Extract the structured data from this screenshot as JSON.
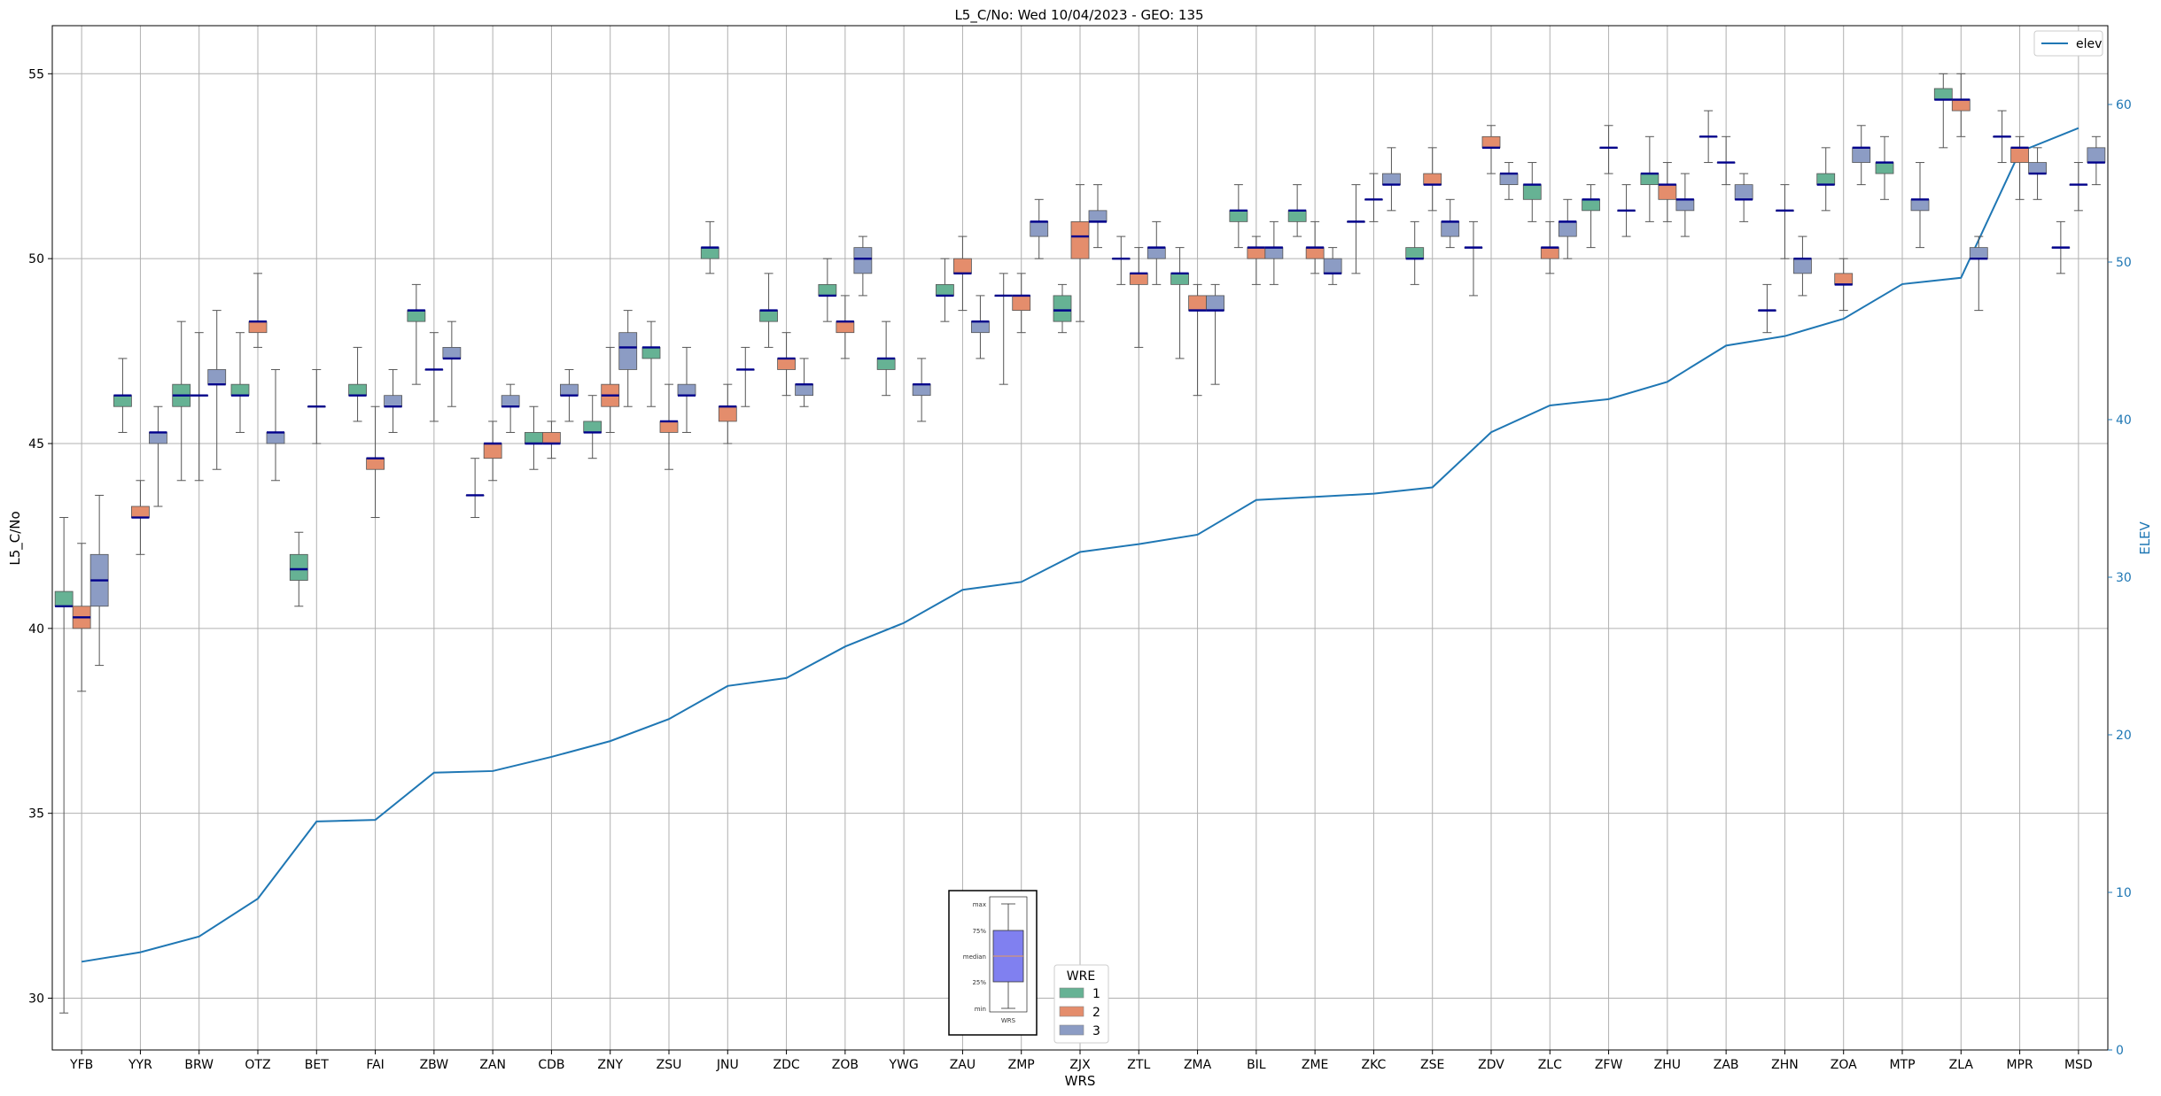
{
  "chart_data": {
    "type": "box",
    "title": "L5_C/No: Wed 10/04/2023 - GEO: 135",
    "xlabel": "WRS",
    "ylabel": "L5_C/No",
    "y2label": "ELEV",
    "ylim": [
      28.6,
      56.3
    ],
    "y2lim": [
      0,
      65
    ],
    "yticks": [
      30,
      35,
      40,
      45,
      50,
      55
    ],
    "y2ticks": [
      0,
      10,
      20,
      30,
      40,
      50,
      60
    ],
    "grid": true,
    "categories": [
      "YFB",
      "YYR",
      "BRW",
      "OTZ",
      "BET",
      "FAI",
      "ZBW",
      "ZAN",
      "CDB",
      "ZNY",
      "ZSU",
      "JNU",
      "ZDC",
      "ZOB",
      "YWG",
      "ZAU",
      "ZMP",
      "ZJX",
      "ZTL",
      "ZMA",
      "BIL",
      "ZME",
      "ZKC",
      "ZSE",
      "ZDV",
      "ZLC",
      "ZFW",
      "ZHU",
      "ZAB",
      "ZHN",
      "ZOA",
      "MTP",
      "ZLA",
      "MPR",
      "MSD"
    ],
    "wre_legend": {
      "title": "WRE",
      "entries": [
        "1",
        "2",
        "3"
      ],
      "colors": [
        "#66b294",
        "#e48d6c",
        "#8c9cc4"
      ]
    },
    "line_legend": "elev",
    "line_color": "#1f77b4",
    "elev": [
      5.6,
      6.2,
      7.2,
      9.6,
      14.5,
      14.6,
      17.6,
      17.7,
      18.6,
      19.6,
      21.0,
      23.1,
      23.6,
      25.6,
      27.1,
      29.2,
      29.7,
      31.6,
      32.1,
      32.7,
      34.9,
      35.1,
      35.3,
      35.7,
      39.2,
      40.9,
      41.3,
      42.4,
      44.7,
      45.3,
      46.4,
      48.6,
      49.0,
      57.0,
      58.5
    ],
    "boxes": [
      {
        "wrs": "YFB",
        "wre": 1,
        "min": 29.6,
        "q1": 40.6,
        "median": 40.6,
        "q3": 41.0,
        "max": 43.0
      },
      {
        "wrs": "YFB",
        "wre": 2,
        "min": 38.3,
        "q1": 40.0,
        "median": 40.3,
        "q3": 40.6,
        "max": 42.3
      },
      {
        "wrs": "YFB",
        "wre": 3,
        "min": 39.0,
        "q1": 40.6,
        "median": 41.3,
        "q3": 42.0,
        "max": 43.6
      },
      {
        "wrs": "YYR",
        "wre": 1,
        "min": 45.3,
        "q1": 46.0,
        "median": 46.3,
        "q3": 46.3,
        "max": 47.3
      },
      {
        "wrs": "YYR",
        "wre": 2,
        "min": 42.0,
        "q1": 43.0,
        "median": 43.0,
        "q3": 43.3,
        "max": 44.0
      },
      {
        "wrs": "YYR",
        "wre": 3,
        "min": 43.3,
        "q1": 45.0,
        "median": 45.3,
        "q3": 45.3,
        "max": 46.0
      },
      {
        "wrs": "BRW",
        "wre": 1,
        "min": 44.0,
        "q1": 46.0,
        "median": 46.3,
        "q3": 46.6,
        "max": 48.3
      },
      {
        "wrs": "BRW",
        "wre": 2,
        "min": 44.0,
        "q1": 46.3,
        "median": 46.3,
        "q3": 46.3,
        "max": 48.0
      },
      {
        "wrs": "BRW",
        "wre": 3,
        "min": 44.3,
        "q1": 46.6,
        "median": 46.6,
        "q3": 47.0,
        "max": 48.6
      },
      {
        "wrs": "OTZ",
        "wre": 1,
        "min": 45.3,
        "q1": 46.3,
        "median": 46.3,
        "q3": 46.6,
        "max": 48.0
      },
      {
        "wrs": "OTZ",
        "wre": 2,
        "min": 47.6,
        "q1": 48.0,
        "median": 48.3,
        "q3": 48.3,
        "max": 49.6
      },
      {
        "wrs": "OTZ",
        "wre": 3,
        "min": 44.0,
        "q1": 45.0,
        "median": 45.3,
        "q3": 45.3,
        "max": 47.0
      },
      {
        "wrs": "BET",
        "wre": 1,
        "min": 40.6,
        "q1": 41.3,
        "median": 41.6,
        "q3": 42.0,
        "max": 42.6
      },
      {
        "wrs": "BET",
        "wre": 2,
        "min": 45.0,
        "q1": 46.0,
        "median": 46.0,
        "q3": 46.0,
        "max": 47.0
      },
      {
        "wrs": "FAI",
        "wre": 1,
        "min": 45.6,
        "q1": 46.3,
        "median": 46.3,
        "q3": 46.6,
        "max": 47.6
      },
      {
        "wrs": "FAI",
        "wre": 2,
        "min": 43.0,
        "q1": 44.3,
        "median": 44.6,
        "q3": 44.6,
        "max": 46.0
      },
      {
        "wrs": "FAI",
        "wre": 3,
        "min": 45.3,
        "q1": 46.0,
        "median": 46.0,
        "q3": 46.3,
        "max": 47.0
      },
      {
        "wrs": "ZBW",
        "wre": 1,
        "min": 46.6,
        "q1": 48.3,
        "median": 48.6,
        "q3": 48.6,
        "max": 49.3
      },
      {
        "wrs": "ZBW",
        "wre": 2,
        "min": 45.6,
        "q1": 47.0,
        "median": 47.0,
        "q3": 47.0,
        "max": 48.0
      },
      {
        "wrs": "ZBW",
        "wre": 3,
        "min": 46.0,
        "q1": 47.3,
        "median": 47.3,
        "q3": 47.6,
        "max": 48.3
      },
      {
        "wrs": "ZAN",
        "wre": 1,
        "min": 43.0,
        "q1": 43.6,
        "median": 43.6,
        "q3": 43.6,
        "max": 44.6
      },
      {
        "wrs": "ZAN",
        "wre": 2,
        "min": 44.0,
        "q1": 44.6,
        "median": 45.0,
        "q3": 45.0,
        "max": 45.6
      },
      {
        "wrs": "ZAN",
        "wre": 3,
        "min": 45.3,
        "q1": 46.0,
        "median": 46.0,
        "q3": 46.3,
        "max": 46.6
      },
      {
        "wrs": "CDB",
        "wre": 1,
        "min": 44.3,
        "q1": 45.0,
        "median": 45.0,
        "q3": 45.3,
        "max": 46.0
      },
      {
        "wrs": "CDB",
        "wre": 2,
        "min": 44.6,
        "q1": 45.0,
        "median": 45.0,
        "q3": 45.3,
        "max": 45.6
      },
      {
        "wrs": "CDB",
        "wre": 3,
        "min": 45.6,
        "q1": 46.3,
        "median": 46.3,
        "q3": 46.6,
        "max": 47.0
      },
      {
        "wrs": "ZNY",
        "wre": 1,
        "min": 44.6,
        "q1": 45.3,
        "median": 45.3,
        "q3": 45.6,
        "max": 46.3
      },
      {
        "wrs": "ZNY",
        "wre": 2,
        "min": 45.3,
        "q1": 46.0,
        "median": 46.3,
        "q3": 46.6,
        "max": 47.6
      },
      {
        "wrs": "ZNY",
        "wre": 3,
        "min": 46.0,
        "q1": 47.0,
        "median": 47.6,
        "q3": 48.0,
        "max": 48.6
      },
      {
        "wrs": "ZSU",
        "wre": 1,
        "min": 46.0,
        "q1": 47.3,
        "median": 47.6,
        "q3": 47.6,
        "max": 48.3
      },
      {
        "wrs": "ZSU",
        "wre": 2,
        "min": 44.3,
        "q1": 45.3,
        "median": 45.6,
        "q3": 45.6,
        "max": 46.6
      },
      {
        "wrs": "ZSU",
        "wre": 3,
        "min": 45.3,
        "q1": 46.3,
        "median": 46.3,
        "q3": 46.6,
        "max": 47.6
      },
      {
        "wrs": "JNU",
        "wre": 1,
        "min": 49.6,
        "q1": 50.0,
        "median": 50.3,
        "q3": 50.3,
        "max": 51.0
      },
      {
        "wrs": "JNU",
        "wre": 2,
        "min": 45.0,
        "q1": 45.6,
        "median": 46.0,
        "q3": 46.0,
        "max": 46.6
      },
      {
        "wrs": "JNU",
        "wre": 3,
        "min": 46.0,
        "q1": 47.0,
        "median": 47.0,
        "q3": 47.0,
        "max": 47.6
      },
      {
        "wrs": "ZDC",
        "wre": 1,
        "min": 47.6,
        "q1": 48.3,
        "median": 48.6,
        "q3": 48.6,
        "max": 49.6
      },
      {
        "wrs": "ZDC",
        "wre": 2,
        "min": 46.3,
        "q1": 47.0,
        "median": 47.3,
        "q3": 47.3,
        "max": 48.0
      },
      {
        "wrs": "ZDC",
        "wre": 3,
        "min": 46.0,
        "q1": 46.3,
        "median": 46.6,
        "q3": 46.6,
        "max": 47.3
      },
      {
        "wrs": "ZOB",
        "wre": 1,
        "min": 48.3,
        "q1": 49.0,
        "median": 49.0,
        "q3": 49.3,
        "max": 50.0
      },
      {
        "wrs": "ZOB",
        "wre": 2,
        "min": 47.3,
        "q1": 48.0,
        "median": 48.3,
        "q3": 48.3,
        "max": 49.0
      },
      {
        "wrs": "ZOB",
        "wre": 3,
        "min": 49.0,
        "q1": 49.6,
        "median": 50.0,
        "q3": 50.3,
        "max": 50.6
      },
      {
        "wrs": "YWG",
        "wre": 1,
        "min": 46.3,
        "q1": 47.0,
        "median": 47.3,
        "q3": 47.3,
        "max": 48.3
      },
      {
        "wrs": "YWG",
        "wre": 3,
        "min": 45.6,
        "q1": 46.3,
        "median": 46.6,
        "q3": 46.6,
        "max": 47.3
      },
      {
        "wrs": "ZAU",
        "wre": 1,
        "min": 48.3,
        "q1": 49.0,
        "median": 49.0,
        "q3": 49.3,
        "max": 50.0
      },
      {
        "wrs": "ZAU",
        "wre": 2,
        "min": 48.6,
        "q1": 49.6,
        "median": 49.6,
        "q3": 50.0,
        "max": 50.6
      },
      {
        "wrs": "ZAU",
        "wre": 3,
        "min": 47.3,
        "q1": 48.0,
        "median": 48.3,
        "q3": 48.3,
        "max": 49.0
      },
      {
        "wrs": "ZMP",
        "wre": 1,
        "min": 46.6,
        "q1": 49.0,
        "median": 49.0,
        "q3": 49.0,
        "max": 49.6
      },
      {
        "wrs": "ZMP",
        "wre": 2,
        "min": 48.0,
        "q1": 48.6,
        "median": 49.0,
        "q3": 49.0,
        "max": 49.6
      },
      {
        "wrs": "ZMP",
        "wre": 3,
        "min": 50.0,
        "q1": 50.6,
        "median": 51.0,
        "q3": 51.0,
        "max": 51.6
      },
      {
        "wrs": "ZJX",
        "wre": 1,
        "min": 48.0,
        "q1": 48.3,
        "median": 48.6,
        "q3": 49.0,
        "max": 49.3
      },
      {
        "wrs": "ZJX",
        "wre": 2,
        "min": 48.3,
        "q1": 50.0,
        "median": 50.6,
        "q3": 51.0,
        "max": 52.0
      },
      {
        "wrs": "ZJX",
        "wre": 3,
        "min": 50.3,
        "q1": 51.0,
        "median": 51.0,
        "q3": 51.3,
        "max": 52.0
      },
      {
        "wrs": "ZTL",
        "wre": 1,
        "min": 49.3,
        "q1": 50.0,
        "median": 50.0,
        "q3": 50.0,
        "max": 50.6
      },
      {
        "wrs": "ZTL",
        "wre": 2,
        "min": 47.6,
        "q1": 49.3,
        "median": 49.6,
        "q3": 49.6,
        "max": 50.3
      },
      {
        "wrs": "ZTL",
        "wre": 3,
        "min": 49.3,
        "q1": 50.0,
        "median": 50.3,
        "q3": 50.3,
        "max": 51.0
      },
      {
        "wrs": "ZMA",
        "wre": 1,
        "min": 47.3,
        "q1": 49.3,
        "median": 49.6,
        "q3": 49.6,
        "max": 50.3
      },
      {
        "wrs": "ZMA",
        "wre": 2,
        "min": 46.3,
        "q1": 48.6,
        "median": 48.6,
        "q3": 49.0,
        "max": 49.3
      },
      {
        "wrs": "ZMA",
        "wre": 3,
        "min": 46.6,
        "q1": 48.6,
        "median": 48.6,
        "q3": 49.0,
        "max": 49.3
      },
      {
        "wrs": "BIL",
        "wre": 1,
        "min": 50.3,
        "q1": 51.0,
        "median": 51.3,
        "q3": 51.3,
        "max": 52.0
      },
      {
        "wrs": "BIL",
        "wre": 2,
        "min": 49.3,
        "q1": 50.0,
        "median": 50.3,
        "q3": 50.3,
        "max": 50.6
      },
      {
        "wrs": "BIL",
        "wre": 3,
        "min": 49.3,
        "q1": 50.0,
        "median": 50.3,
        "q3": 50.3,
        "max": 51.0
      },
      {
        "wrs": "ZME",
        "wre": 1,
        "min": 50.6,
        "q1": 51.0,
        "median": 51.3,
        "q3": 51.3,
        "max": 52.0
      },
      {
        "wrs": "ZME",
        "wre": 2,
        "min": 49.6,
        "q1": 50.0,
        "median": 50.3,
        "q3": 50.3,
        "max": 51.0
      },
      {
        "wrs": "ZME",
        "wre": 3,
        "min": 49.3,
        "q1": 49.6,
        "median": 49.6,
        "q3": 50.0,
        "max": 50.3
      },
      {
        "wrs": "ZKC",
        "wre": 1,
        "min": 49.6,
        "q1": 51.0,
        "median": 51.0,
        "q3": 51.0,
        "max": 52.0
      },
      {
        "wrs": "ZKC",
        "wre": 2,
        "min": 51.0,
        "q1": 51.6,
        "median": 51.6,
        "q3": 51.6,
        "max": 52.3
      },
      {
        "wrs": "ZKC",
        "wre": 3,
        "min": 51.3,
        "q1": 52.0,
        "median": 52.0,
        "q3": 52.3,
        "max": 53.0
      },
      {
        "wrs": "ZSE",
        "wre": 1,
        "min": 49.3,
        "q1": 50.0,
        "median": 50.0,
        "q3": 50.3,
        "max": 51.0
      },
      {
        "wrs": "ZSE",
        "wre": 2,
        "min": 51.3,
        "q1": 52.0,
        "median": 52.0,
        "q3": 52.3,
        "max": 53.0
      },
      {
        "wrs": "ZSE",
        "wre": 3,
        "min": 50.3,
        "q1": 50.6,
        "median": 51.0,
        "q3": 51.0,
        "max": 51.6
      },
      {
        "wrs": "ZDV",
        "wre": 1,
        "min": 49.0,
        "q1": 50.3,
        "median": 50.3,
        "q3": 50.3,
        "max": 51.0
      },
      {
        "wrs": "ZDV",
        "wre": 2,
        "min": 52.3,
        "q1": 53.0,
        "median": 53.0,
        "q3": 53.3,
        "max": 53.6
      },
      {
        "wrs": "ZDV",
        "wre": 3,
        "min": 51.6,
        "q1": 52.0,
        "median": 52.3,
        "q3": 52.3,
        "max": 52.6
      },
      {
        "wrs": "ZLC",
        "wre": 1,
        "min": 51.0,
        "q1": 51.6,
        "median": 52.0,
        "q3": 52.0,
        "max": 52.6
      },
      {
        "wrs": "ZLC",
        "wre": 2,
        "min": 49.6,
        "q1": 50.0,
        "median": 50.3,
        "q3": 50.3,
        "max": 51.0
      },
      {
        "wrs": "ZLC",
        "wre": 3,
        "min": 50.0,
        "q1": 50.6,
        "median": 51.0,
        "q3": 51.0,
        "max": 51.6
      },
      {
        "wrs": "ZFW",
        "wre": 1,
        "min": 50.3,
        "q1": 51.3,
        "median": 51.6,
        "q3": 51.6,
        "max": 52.0
      },
      {
        "wrs": "ZFW",
        "wre": 2,
        "min": 52.3,
        "q1": 53.0,
        "median": 53.0,
        "q3": 53.0,
        "max": 53.6
      },
      {
        "wrs": "ZFW",
        "wre": 3,
        "min": 50.6,
        "q1": 51.3,
        "median": 51.3,
        "q3": 51.3,
        "max": 52.0
      },
      {
        "wrs": "ZHU",
        "wre": 1,
        "min": 51.0,
        "q1": 52.0,
        "median": 52.3,
        "q3": 52.3,
        "max": 53.3
      },
      {
        "wrs": "ZHU",
        "wre": 2,
        "min": 51.0,
        "q1": 51.6,
        "median": 52.0,
        "q3": 52.0,
        "max": 52.6
      },
      {
        "wrs": "ZHU",
        "wre": 3,
        "min": 50.6,
        "q1": 51.3,
        "median": 51.6,
        "q3": 51.6,
        "max": 52.3
      },
      {
        "wrs": "ZAB",
        "wre": 1,
        "min": 52.6,
        "q1": 53.3,
        "median": 53.3,
        "q3": 53.3,
        "max": 54.0
      },
      {
        "wrs": "ZAB",
        "wre": 2,
        "min": 52.0,
        "q1": 52.6,
        "median": 52.6,
        "q3": 52.6,
        "max": 53.3
      },
      {
        "wrs": "ZAB",
        "wre": 3,
        "min": 51.0,
        "q1": 51.6,
        "median": 51.6,
        "q3": 52.0,
        "max": 52.3
      },
      {
        "wrs": "ZHN",
        "wre": 1,
        "min": 48.0,
        "q1": 48.6,
        "median": 48.6,
        "q3": 48.6,
        "max": 49.3
      },
      {
        "wrs": "ZHN",
        "wre": 2,
        "min": 50.0,
        "q1": 51.3,
        "median": 51.3,
        "q3": 51.3,
        "max": 52.0
      },
      {
        "wrs": "ZHN",
        "wre": 3,
        "min": 49.0,
        "q1": 49.6,
        "median": 50.0,
        "q3": 50.0,
        "max": 50.6
      },
      {
        "wrs": "ZOA",
        "wre": 1,
        "min": 51.3,
        "q1": 52.0,
        "median": 52.0,
        "q3": 52.3,
        "max": 53.0
      },
      {
        "wrs": "ZOA",
        "wre": 2,
        "min": 48.6,
        "q1": 49.3,
        "median": 49.3,
        "q3": 49.6,
        "max": 50.0
      },
      {
        "wrs": "ZOA",
        "wre": 3,
        "min": 52.0,
        "q1": 52.6,
        "median": 53.0,
        "q3": 53.0,
        "max": 53.6
      },
      {
        "wrs": "MTP",
        "wre": 1,
        "min": 51.6,
        "q1": 52.3,
        "median": 52.6,
        "q3": 52.6,
        "max": 53.3
      },
      {
        "wrs": "MTP",
        "wre": 3,
        "min": 50.3,
        "q1": 51.3,
        "median": 51.6,
        "q3": 51.6,
        "max": 52.6
      },
      {
        "wrs": "ZLA",
        "wre": 1,
        "min": 53.0,
        "q1": 54.3,
        "median": 54.3,
        "q3": 54.6,
        "max": 55.0
      },
      {
        "wrs": "ZLA",
        "wre": 2,
        "min": 53.3,
        "q1": 54.0,
        "median": 54.3,
        "q3": 54.3,
        "max": 55.0
      },
      {
        "wrs": "ZLA",
        "wre": 3,
        "min": 48.6,
        "q1": 50.0,
        "median": 50.0,
        "q3": 50.3,
        "max": 50.6
      },
      {
        "wrs": "MPR",
        "wre": 1,
        "min": 52.6,
        "q1": 53.3,
        "median": 53.3,
        "q3": 53.3,
        "max": 54.0
      },
      {
        "wrs": "MPR",
        "wre": 2,
        "min": 51.6,
        "q1": 52.6,
        "median": 53.0,
        "q3": 53.0,
        "max": 53.3
      },
      {
        "wrs": "MPR",
        "wre": 3,
        "min": 51.6,
        "q1": 52.3,
        "median": 52.3,
        "q3": 52.6,
        "max": 53.0
      },
      {
        "wrs": "MSD",
        "wre": 1,
        "min": 49.6,
        "q1": 50.3,
        "median": 50.3,
        "q3": 50.3,
        "max": 51.0
      },
      {
        "wrs": "MSD",
        "wre": 2,
        "min": 51.3,
        "q1": 52.0,
        "median": 52.0,
        "q3": 52.0,
        "max": 52.6
      },
      {
        "wrs": "MSD",
        "wre": 3,
        "min": 52.0,
        "q1": 52.6,
        "median": 52.6,
        "q3": 53.0,
        "max": 53.3
      }
    ]
  },
  "inset": {
    "labels": [
      "max",
      "75%",
      "median",
      "25%",
      "min"
    ],
    "xlabel": "WRS"
  }
}
